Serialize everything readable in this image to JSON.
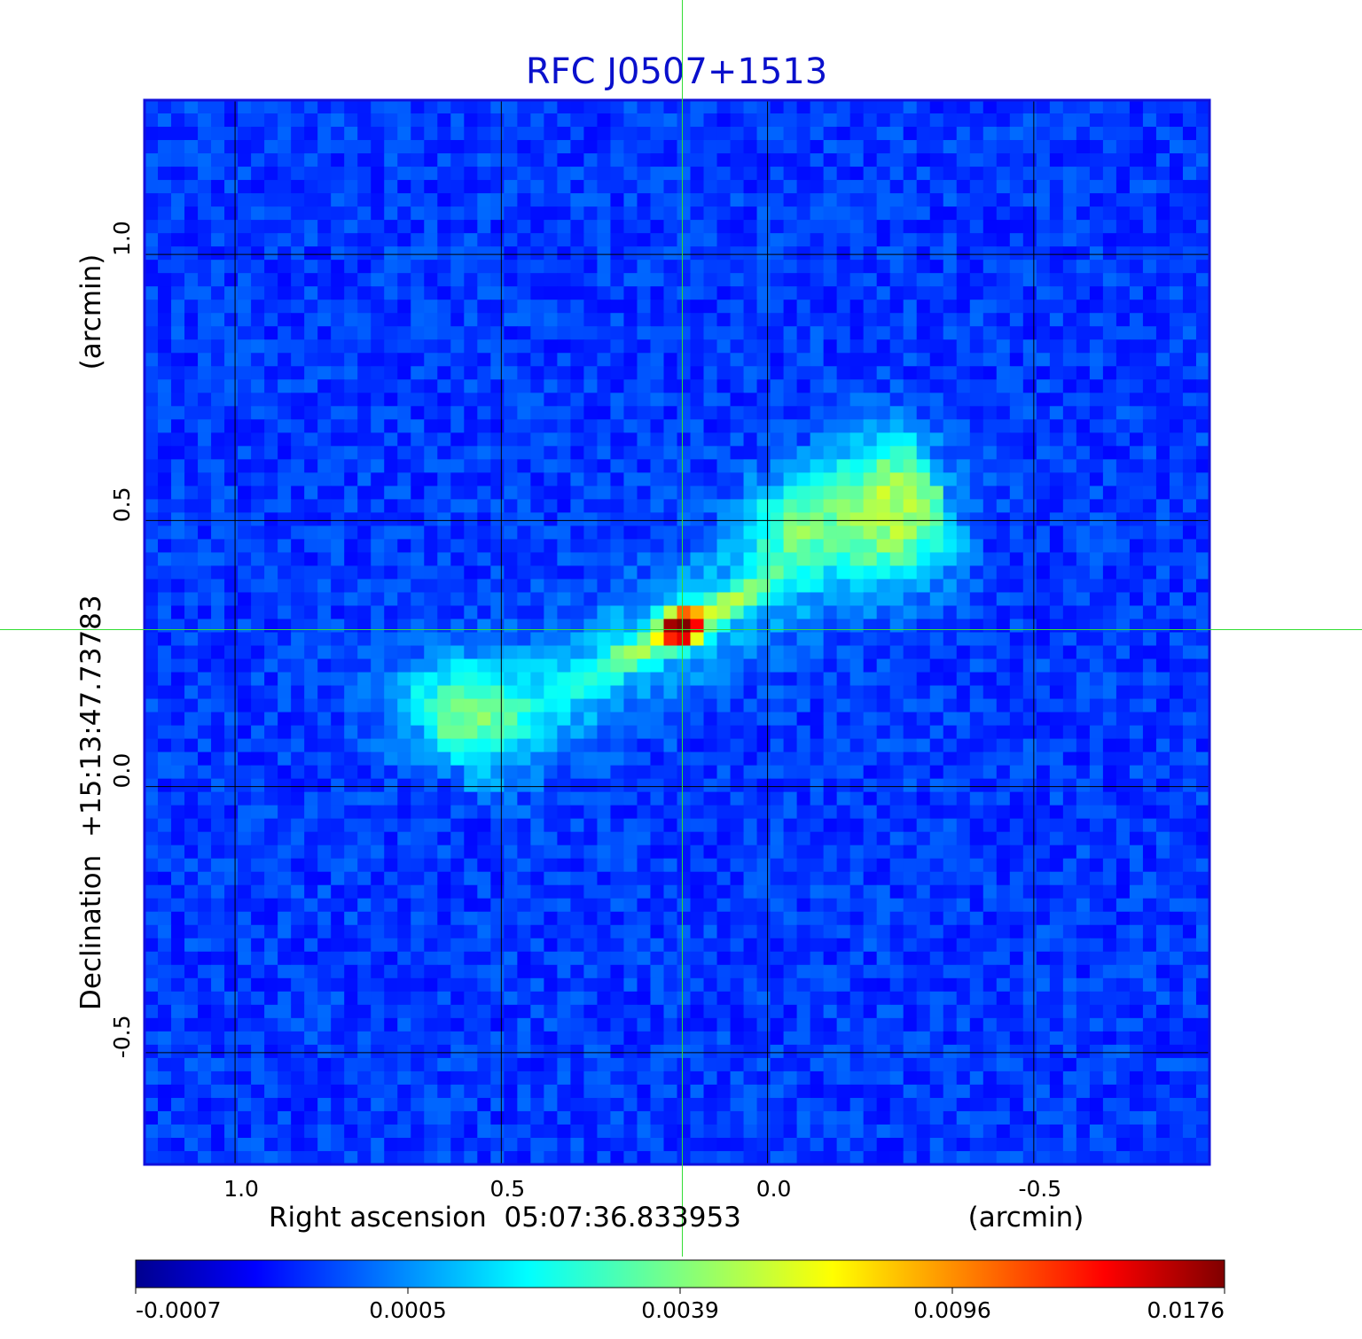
{
  "chart_data": {
    "type": "heatmap",
    "title": "RFC J0507+1513",
    "xlabel": "Right ascension  05:07:36.833953",
    "xunit": "(arcmin)",
    "ylabel": "Declination  +15:13:47.73783",
    "yunit": "(arcmin)",
    "xlim": [
      1.17,
      -0.83
    ],
    "ylim": [
      -0.71,
      1.29
    ],
    "xticks": [
      1.0,
      0.5,
      0.0,
      -0.5
    ],
    "xtick_labels": [
      "1.0",
      "0.5",
      "0.0",
      "-0.5"
    ],
    "yticks": [
      1.0,
      0.5,
      0.0,
      -0.5
    ],
    "ytick_labels": [
      "1.0",
      "0.5",
      "0.0",
      "-0.5"
    ],
    "grid": true,
    "crosshair": {
      "x": 0.16,
      "y": 0.295,
      "color": "#33dd33"
    },
    "colormap": "jet",
    "colorbar": {
      "orientation": "horizontal",
      "position": "bottom",
      "tick_labels": [
        "-0.0007",
        "0.0005",
        "0.0039",
        "0.0096",
        "0.0176"
      ],
      "range": [
        -0.0007,
        0.0176
      ]
    },
    "features": [
      {
        "x": 0.16,
        "y": 0.3,
        "peak": 0.0176
      },
      {
        "x": 0.58,
        "y": 0.15,
        "peak": 0.0012
      },
      {
        "x": -0.05,
        "y": 0.5,
        "peak": 0.0014
      },
      {
        "x": -0.22,
        "y": 0.58,
        "peak": 0.0012
      },
      {
        "x": -0.25,
        "y": 0.45,
        "peak": 0.0009
      }
    ],
    "colors": {
      "title": "#0a10cc",
      "frame": "#1010dd",
      "grid": "#000000"
    }
  }
}
